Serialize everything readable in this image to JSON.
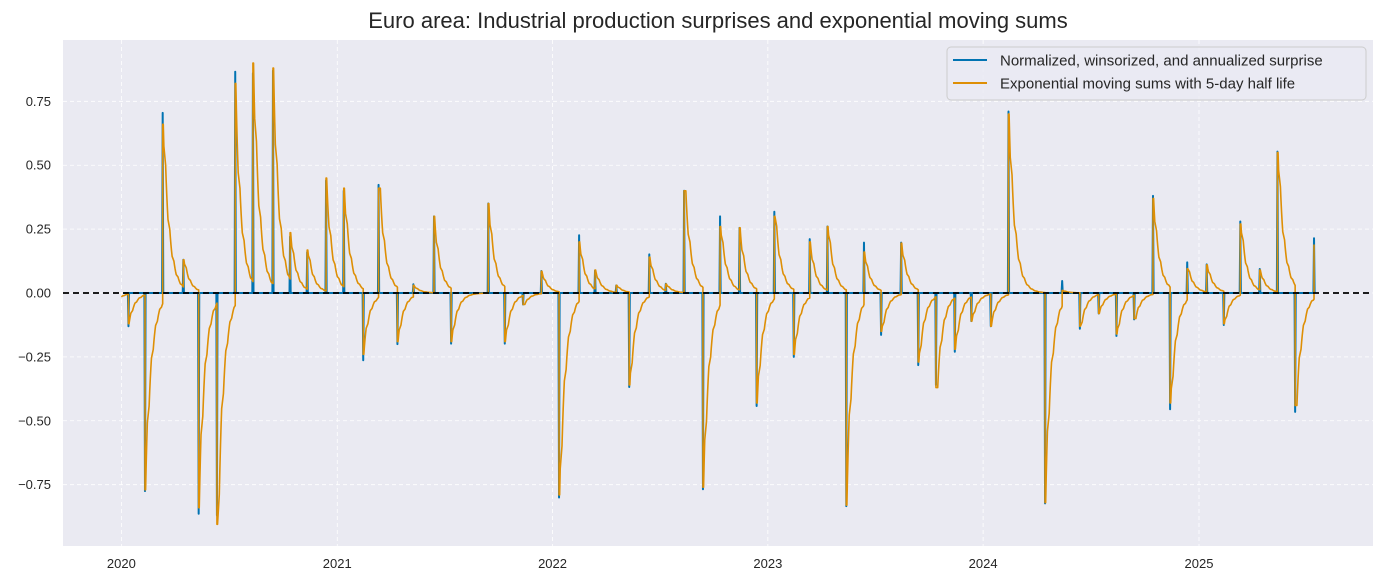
{
  "chart_data": {
    "type": "line",
    "title": "Euro area: Industrial production surprises and exponential moving sums",
    "xlabel": "",
    "ylabel": "",
    "xlim": [
      "2019-09-24",
      "2025-10-23"
    ],
    "ylim": [
      -0.99,
      0.99
    ],
    "x_ticks": [
      "2020",
      "2021",
      "2022",
      "2023",
      "2024",
      "2025"
    ],
    "y_ticks": [
      -0.75,
      -0.5,
      -0.25,
      0.0,
      0.25,
      0.5,
      0.75
    ],
    "y_tick_labels": [
      "−0.75",
      "−0.50",
      "−0.25",
      "0.00",
      "0.25",
      "0.50",
      "0.75"
    ],
    "grid": true,
    "grid_style": "dashed",
    "background": "#eaeaf2",
    "zero_line": {
      "value": 0,
      "style": "dashed",
      "color": "#000000"
    },
    "legend": {
      "position": "top-right",
      "entries": [
        {
          "label": "Normalized, winsorized, and annualized surprise",
          "color": "#0173b2"
        },
        {
          "label": "Exponential moving sums with 5-day half life",
          "color": "#de8f05"
        }
      ]
    },
    "series": [
      {
        "name": "Normalized, winsorized, and annualized surprise",
        "color": "#0173b2",
        "kind": "daily surprise (zero except release days)"
      },
      {
        "name": "Exponential moving sums with 5-day half life",
        "color": "#de8f05",
        "half_life_business_days": 5,
        "start": {
          "date": "2020-01-01",
          "value": -0.015
        },
        "end_date": "2025-07-15"
      }
    ],
    "events": [
      {
        "date": "2020-01-13",
        "surprise": -0.13,
        "ems": -0.12
      },
      {
        "date": "2020-02-10",
        "surprise": -0.775,
        "ems": -0.77
      },
      {
        "date": "2020-03-11",
        "surprise": 0.705,
        "ems": 0.66
      },
      {
        "date": "2020-04-15",
        "surprise": 0.13,
        "ems": 0.13
      },
      {
        "date": "2020-05-11",
        "surprise": -0.864,
        "ems": -0.84
      },
      {
        "date": "2020-06-11",
        "surprise": -0.87,
        "ems": -0.905
      },
      {
        "date": "2020-07-12",
        "surprise": 0.866,
        "ems": 0.82
      },
      {
        "date": "2020-08-11",
        "surprise": 0.86,
        "ems": 0.9
      },
      {
        "date": "2020-09-14",
        "surprise": 0.87,
        "ems": 0.88
      },
      {
        "date": "2020-10-13",
        "surprise": 0.22,
        "ems": 0.236
      },
      {
        "date": "2020-11-11",
        "surprise": 0.16,
        "ems": 0.168
      },
      {
        "date": "2020-12-13",
        "surprise": 0.44,
        "ems": 0.45
      },
      {
        "date": "2021-01-12",
        "surprise": 0.4,
        "ems": 0.41
      },
      {
        "date": "2021-02-14",
        "surprise": -0.263,
        "ems": -0.24
      },
      {
        "date": "2021-03-12",
        "surprise": 0.423,
        "ems": 0.41
      },
      {
        "date": "2021-04-13",
        "surprise": -0.2,
        "ems": -0.19
      },
      {
        "date": "2021-05-10",
        "surprise": 0.034,
        "ems": 0.03
      },
      {
        "date": "2021-06-14",
        "surprise": 0.3,
        "ems": 0.3
      },
      {
        "date": "2021-07-13",
        "surprise": -0.198,
        "ems": -0.19
      },
      {
        "date": "2021-09-14",
        "surprise": 0.35,
        "ems": 0.35
      },
      {
        "date": "2021-10-12",
        "surprise": -0.198,
        "ems": -0.19
      },
      {
        "date": "2021-11-12",
        "surprise": -0.045,
        "ems": -0.045
      },
      {
        "date": "2021-12-13",
        "surprise": 0.086,
        "ems": 0.085
      },
      {
        "date": "2022-01-12",
        "surprise": -0.8,
        "ems": -0.79
      },
      {
        "date": "2022-02-15",
        "surprise": 0.226,
        "ems": 0.2
      },
      {
        "date": "2022-03-14",
        "surprise": 0.088,
        "ems": 0.09
      },
      {
        "date": "2022-04-19",
        "surprise": 0.03,
        "ems": 0.03
      },
      {
        "date": "2022-05-11",
        "surprise": -0.368,
        "ems": -0.36
      },
      {
        "date": "2022-06-14",
        "surprise": 0.151,
        "ems": 0.14
      },
      {
        "date": "2022-07-12",
        "surprise": 0.036,
        "ems": 0.035
      },
      {
        "date": "2022-08-12",
        "surprise": 0.4,
        "ems": 0.4
      },
      {
        "date": "2022-09-13",
        "surprise": -0.768,
        "ems": -0.76
      },
      {
        "date": "2022-10-12",
        "surprise": 0.3,
        "ems": 0.26
      },
      {
        "date": "2022-11-14",
        "surprise": 0.255,
        "ems": 0.255
      },
      {
        "date": "2022-12-13",
        "surprise": -0.442,
        "ems": -0.43
      },
      {
        "date": "2023-01-12",
        "surprise": 0.318,
        "ems": 0.3
      },
      {
        "date": "2023-02-14",
        "surprise": -0.25,
        "ems": -0.24
      },
      {
        "date": "2023-03-13",
        "surprise": 0.211,
        "ems": 0.2
      },
      {
        "date": "2023-04-12",
        "surprise": 0.26,
        "ems": 0.26
      },
      {
        "date": "2023-05-14",
        "surprise": -0.834,
        "ems": -0.83
      },
      {
        "date": "2023-06-13",
        "surprise": 0.197,
        "ems": 0.16
      },
      {
        "date": "2023-07-12",
        "surprise": -0.164,
        "ems": -0.15
      },
      {
        "date": "2023-08-15",
        "surprise": 0.197,
        "ems": 0.195
      },
      {
        "date": "2023-09-13",
        "surprise": -0.282,
        "ems": -0.27
      },
      {
        "date": "2023-10-13",
        "surprise": -0.36,
        "ems": -0.37
      },
      {
        "date": "2023-11-14",
        "surprise": -0.23,
        "ems": -0.22
      },
      {
        "date": "2023-12-12",
        "surprise": -0.11,
        "ems": -0.11
      },
      {
        "date": "2024-01-14",
        "surprise": -0.13,
        "ems": -0.13
      },
      {
        "date": "2024-02-13",
        "surprise": 0.71,
        "ems": 0.7
      },
      {
        "date": "2024-04-15",
        "surprise": -0.823,
        "ems": -0.82
      },
      {
        "date": "2024-05-14",
        "surprise": 0.047,
        "ems": 0.01
      },
      {
        "date": "2024-06-13",
        "surprise": -0.14,
        "ems": -0.13
      },
      {
        "date": "2024-07-15",
        "surprise": -0.08,
        "ems": -0.08
      },
      {
        "date": "2024-08-14",
        "surprise": -0.168,
        "ems": -0.16
      },
      {
        "date": "2024-09-13",
        "surprise": -0.103,
        "ems": -0.1
      },
      {
        "date": "2024-10-15",
        "surprise": 0.38,
        "ems": 0.37
      },
      {
        "date": "2024-11-13",
        "surprise": -0.455,
        "ems": -0.43
      },
      {
        "date": "2024-12-12",
        "surprise": 0.12,
        "ems": 0.095
      },
      {
        "date": "2025-01-14",
        "surprise": 0.112,
        "ems": 0.11
      },
      {
        "date": "2025-02-12",
        "surprise": -0.125,
        "ems": -0.12
      },
      {
        "date": "2025-03-12",
        "surprise": 0.28,
        "ems": 0.27
      },
      {
        "date": "2025-04-14",
        "surprise": 0.094,
        "ems": 0.09
      },
      {
        "date": "2025-05-14",
        "surprise": 0.553,
        "ems": 0.55
      },
      {
        "date": "2025-06-13",
        "surprise": -0.465,
        "ems": -0.44
      },
      {
        "date": "2025-07-15",
        "surprise": 0.214,
        "ems": 0.19
      }
    ]
  }
}
